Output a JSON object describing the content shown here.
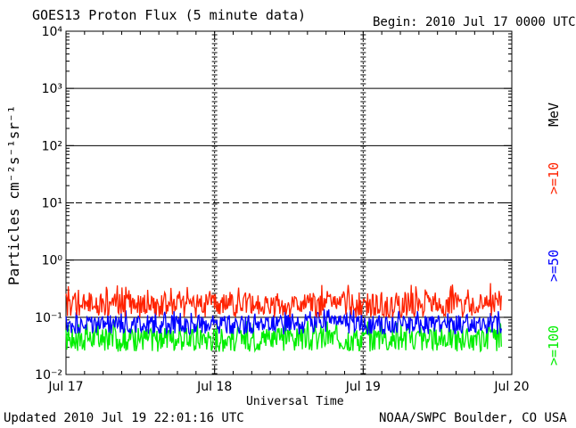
{
  "title": "GOES13 Proton Flux (5 minute data)",
  "begin": "Begin: 2010 Jul 17 0000 UTC",
  "updated": "Updated 2010 Jul 19 22:01:16 UTC",
  "credit": "NOAA/SWPC Boulder, CO USA",
  "colors": {
    "ten": "#ff2200",
    "fifty": "#0000ff",
    "hundred": "#00ee00"
  },
  "legend": {
    "unit": "MeV",
    "ten": ">=10",
    "fifty": ">=50",
    "hundred": ">=100"
  },
  "chart_data": {
    "type": "line",
    "title": "GOES13 Proton Flux (5 minute data)",
    "xlabel": "Universal Time",
    "ylabel": "Particles cm⁻²s⁻¹sr⁻¹",
    "yscale": "log",
    "ylim": [
      0.01,
      10000
    ],
    "y_ticks": [
      "10⁻²",
      "10⁻¹",
      "10⁰",
      "10¹",
      "10²",
      "10³",
      "10⁴"
    ],
    "x_ticks": [
      "Jul 17",
      "Jul 18",
      "Jul 19",
      "Jul 20"
    ],
    "xlim_days": [
      0,
      3
    ],
    "series": [
      {
        "name": ">=10 MeV",
        "color": "#ff2200",
        "typical": 0.17,
        "range": [
          0.1,
          0.4
        ]
      },
      {
        "name": ">=50 MeV",
        "color": "#0000ff",
        "typical": 0.08,
        "range": [
          0.05,
          0.14
        ]
      },
      {
        "name": ">=100 MeV",
        "color": "#00ee00",
        "typical": 0.045,
        "range": [
          0.025,
          0.09
        ]
      }
    ],
    "horizontal_lines": [
      {
        "value": 1000,
        "style": "solid"
      },
      {
        "value": 100,
        "style": "solid"
      },
      {
        "value": 10,
        "style": "dashed"
      },
      {
        "value": 1,
        "style": "solid"
      },
      {
        "value": 0.1,
        "style": "solid"
      }
    ],
    "grid": "vertical dashed at day boundaries"
  }
}
